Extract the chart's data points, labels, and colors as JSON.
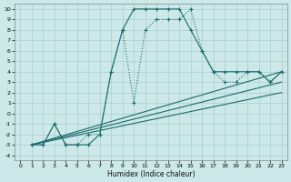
{
  "xlabel": "Humidex (Indice chaleur)",
  "bg_color": "#cce8e8",
  "grid_color": "#aacfcf",
  "line_color": "#1a6b6b",
  "xlim": [
    -0.5,
    23.5
  ],
  "ylim": [
    -4.5,
    10.5
  ],
  "xticks": [
    0,
    1,
    2,
    3,
    4,
    5,
    6,
    7,
    8,
    9,
    10,
    11,
    12,
    13,
    14,
    15,
    16,
    17,
    18,
    19,
    20,
    21,
    22,
    23
  ],
  "yticks": [
    -4,
    -3,
    -2,
    -1,
    0,
    1,
    2,
    3,
    4,
    5,
    6,
    7,
    8,
    9,
    10
  ],
  "curve1_x": [
    1,
    2,
    3,
    4,
    5,
    6,
    7,
    8,
    9,
    10,
    11,
    12,
    13,
    14,
    15,
    16,
    17,
    18,
    19,
    20,
    21,
    22,
    23
  ],
  "curve1_y": [
    -3,
    -3,
    -1,
    -3,
    -3,
    -3,
    -2,
    4,
    8,
    10,
    10,
    10,
    10,
    10,
    8,
    6,
    4,
    4,
    4,
    4,
    4,
    3,
    4
  ],
  "curve2_x": [
    1,
    2,
    3,
    4,
    5,
    6,
    7,
    8,
    9,
    10,
    11,
    12,
    13,
    14,
    15,
    16,
    17,
    18,
    19,
    20,
    21,
    22,
    23
  ],
  "curve2_y": [
    -3,
    -3,
    -1,
    -3,
    -3,
    -2,
    -2,
    4,
    8,
    1,
    8,
    9,
    9,
    9,
    10,
    6,
    4,
    3,
    3,
    4,
    4,
    3,
    4
  ],
  "line1_x": [
    1,
    23
  ],
  "line1_y": [
    -3,
    4
  ],
  "line2_x": [
    1,
    23
  ],
  "line2_y": [
    -3,
    3
  ],
  "line3_x": [
    1,
    23
  ],
  "line3_y": [
    -3,
    2
  ]
}
